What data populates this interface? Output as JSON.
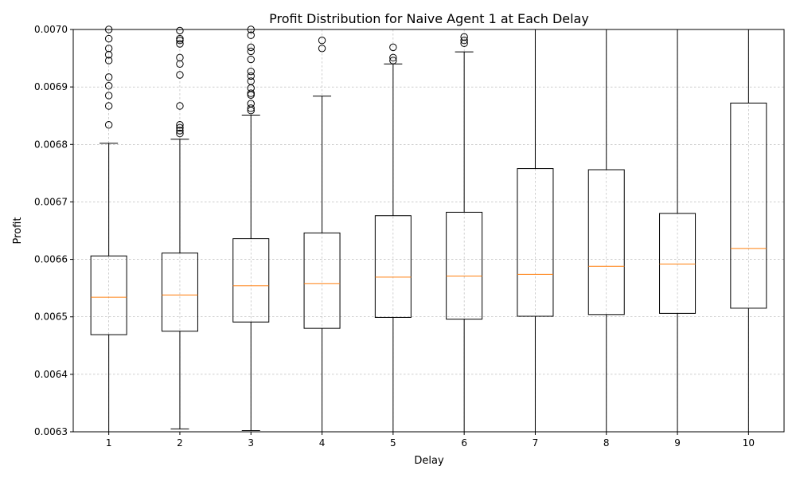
{
  "chart_data": {
    "type": "box",
    "title": "Profit Distribution for Naive Agent 1 at Each Delay",
    "xlabel": "Delay",
    "ylabel": "Profit",
    "ylim": [
      0.0063,
      0.007
    ],
    "yticks": [
      "0.0063",
      "0.0064",
      "0.0065",
      "0.0066",
      "0.0067",
      "0.0068",
      "0.0069",
      "0.0070"
    ],
    "grid": true,
    "colors": {
      "box": "#000000",
      "median": "#ff7f0e",
      "grid": "#b0b0b0"
    },
    "boxes": [
      {
        "label": "1",
        "lower_whisker": 0.0063,
        "q1": 0.006469,
        "median": 0.006534,
        "q3": 0.006606,
        "upper_whisker": 0.006802,
        "outliers": [
          0.006834,
          0.006867,
          0.006885,
          0.006902,
          0.006917,
          0.006946,
          0.006956,
          0.006967,
          0.006984,
          0.007
        ]
      },
      {
        "label": "2",
        "lower_whisker": 0.006305,
        "q1": 0.006475,
        "median": 0.006538,
        "q3": 0.006611,
        "upper_whisker": 0.006809,
        "outliers": [
          0.006819,
          0.006824,
          0.006829,
          0.006834,
          0.006867,
          0.006921,
          0.00694,
          0.006951,
          0.006975,
          0.006981,
          0.006984,
          0.006998
        ]
      },
      {
        "label": "3",
        "lower_whisker": 0.006302,
        "q1": 0.006491,
        "median": 0.006554,
        "q3": 0.006636,
        "upper_whisker": 0.006851,
        "outliers": [
          0.006859,
          0.006863,
          0.006871,
          0.006886,
          0.006889,
          0.006898,
          0.00691,
          0.006919,
          0.006927,
          0.006948,
          0.006962,
          0.006969,
          0.00699,
          0.007
        ]
      },
      {
        "label": "4",
        "lower_whisker": 0.0063,
        "q1": 0.00648,
        "median": 0.006558,
        "q3": 0.006646,
        "upper_whisker": 0.006884,
        "outliers": [
          0.006967,
          0.006981
        ]
      },
      {
        "label": "5",
        "lower_whisker": 0.0063,
        "q1": 0.006499,
        "median": 0.006569,
        "q3": 0.006676,
        "upper_whisker": 0.00694,
        "outliers": [
          0.006946,
          0.006951,
          0.006969
        ]
      },
      {
        "label": "6",
        "lower_whisker": 0.0063,
        "q1": 0.006496,
        "median": 0.006571,
        "q3": 0.006682,
        "upper_whisker": 0.006961,
        "outliers": [
          0.006976,
          0.006981,
          0.006987
        ]
      },
      {
        "label": "7",
        "lower_whisker": 0.0063,
        "q1": 0.006501,
        "median": 0.006574,
        "q3": 0.006758,
        "upper_whisker": 0.007,
        "outliers": []
      },
      {
        "label": "8",
        "lower_whisker": 0.0063,
        "q1": 0.006504,
        "median": 0.006588,
        "q3": 0.006756,
        "upper_whisker": 0.007,
        "outliers": []
      },
      {
        "label": "9",
        "lower_whisker": 0.0063,
        "q1": 0.006506,
        "median": 0.006592,
        "q3": 0.00668,
        "upper_whisker": 0.007,
        "outliers": []
      },
      {
        "label": "10",
        "lower_whisker": 0.0063,
        "q1": 0.006515,
        "median": 0.006619,
        "q3": 0.006872,
        "upper_whisker": 0.007,
        "outliers": []
      }
    ]
  }
}
